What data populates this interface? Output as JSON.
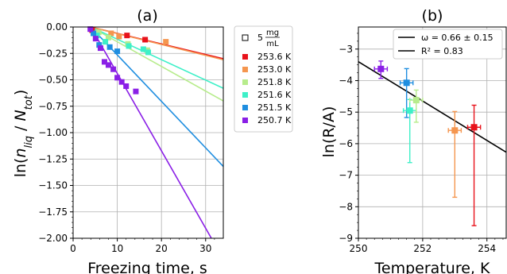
{
  "chart_data": [
    {
      "type": "scatter",
      "title": "(a)",
      "xlabel": "Freezing time, s",
      "ylabel": "ln(n_liq / N_tot)",
      "xlim": [
        0,
        34
      ],
      "ylim": [
        -2.0,
        0.0
      ],
      "x_ticks": [
        0,
        10,
        20,
        30
      ],
      "y_ticks": [
        0.0,
        -0.25,
        -0.5,
        -0.75,
        -1.0,
        -1.25,
        -1.5,
        -1.75,
        -2.0
      ],
      "x_tick_labels": [
        "0",
        "10",
        "20",
        "30"
      ],
      "y_tick_labels": [
        "0.00",
        "−0.25",
        "−0.50",
        "−0.75",
        "−1.00",
        "−1.25",
        "−1.50",
        "−1.75",
        "−2.00"
      ],
      "grid": true,
      "legend": {
        "placement": "outside-right",
        "header": {
          "text": "5",
          "unit_num": "mg",
          "unit_den": "mL"
        }
      },
      "series": [
        {
          "name": "253.6 K",
          "color": "#e8121b",
          "points": [
            [
              4.3,
              -0.03
            ],
            [
              12.2,
              -0.08
            ],
            [
              16.3,
              -0.12
            ]
          ],
          "fit": [
            [
              4.0,
              0.0
            ],
            [
              34,
              -0.3
            ]
          ]
        },
        {
          "name": "253.0 K",
          "color": "#f5964f",
          "points": [
            [
              8.6,
              -0.06
            ],
            [
              10.4,
              -0.09
            ],
            [
              21.0,
              -0.14
            ]
          ],
          "fit": [
            [
              4.0,
              0.0
            ],
            [
              34,
              -0.31
            ]
          ]
        },
        {
          "name": "251.8 K",
          "color": "#b7ec8c",
          "points": [
            [
              5.8,
              -0.05
            ],
            [
              8.0,
              -0.1
            ],
            [
              12.4,
              -0.16
            ],
            [
              16.8,
              -0.22
            ]
          ],
          "fit": [
            [
              4.0,
              0.0
            ],
            [
              34,
              -0.7
            ]
          ]
        },
        {
          "name": "251.6 K",
          "color": "#3ef0c8",
          "points": [
            [
              5.4,
              -0.08
            ],
            [
              7.3,
              -0.14
            ],
            [
              12.6,
              -0.18
            ],
            [
              15.9,
              -0.21
            ],
            [
              17.0,
              -0.24
            ]
          ],
          "fit": [
            [
              4.0,
              0.0
            ],
            [
              34,
              -0.58
            ]
          ]
        },
        {
          "name": "251.5 K",
          "color": "#1f8ee0",
          "points": [
            [
              4.6,
              -0.06
            ],
            [
              5.9,
              -0.17
            ],
            [
              8.3,
              -0.19
            ],
            [
              10.0,
              -0.23
            ]
          ],
          "fit": [
            [
              4.0,
              0.0
            ],
            [
              34,
              -1.32
            ]
          ]
        },
        {
          "name": "250.7 K",
          "color": "#8a1fe6",
          "points": [
            [
              3.9,
              -0.02
            ],
            [
              5.1,
              -0.11
            ],
            [
              6.2,
              -0.2
            ],
            [
              7.1,
              -0.33
            ],
            [
              8.0,
              -0.36
            ],
            [
              9.1,
              -0.4
            ],
            [
              10.0,
              -0.48
            ],
            [
              11.0,
              -0.52
            ],
            [
              12.0,
              -0.56
            ],
            [
              14.2,
              -0.61
            ]
          ],
          "fit": [
            [
              4.0,
              0.0
            ],
            [
              31.3,
              -2.0
            ]
          ]
        }
      ]
    },
    {
      "type": "scatter",
      "title": "(b)",
      "xlabel": "Temperature, K",
      "ylabel": "ln(R/A)",
      "xlim": [
        250,
        254.6
      ],
      "ylim": [
        -9,
        -2.3
      ],
      "x_ticks": [
        250,
        252,
        254
      ],
      "y_ticks": [
        -3,
        -4,
        -5,
        -6,
        -7,
        -8,
        -9
      ],
      "x_tick_labels": [
        "250",
        "252",
        "254"
      ],
      "y_tick_labels": [
        "−3",
        "−4",
        "−5",
        "−6",
        "−7",
        "−8",
        "−9"
      ],
      "grid": true,
      "legend": {
        "placement": "top-right",
        "entries": [
          {
            "label": "ω = 0.66 ± 0.15"
          },
          {
            "label": "R² = 0.83"
          }
        ]
      },
      "fit_line": [
        [
          250,
          -3.4
        ],
        [
          254.6,
          -6.27
        ]
      ],
      "points": [
        {
          "x": 250.7,
          "y": -3.63,
          "xerr": 0.2,
          "yerr_lo": 0.3,
          "yerr_hi": 0.25,
          "color": "#8a1fe6"
        },
        {
          "x": 251.5,
          "y": -4.07,
          "xerr": 0.2,
          "yerr_lo": 1.1,
          "yerr_hi": 0.45,
          "color": "#1f8ee0"
        },
        {
          "x": 251.6,
          "y": -4.95,
          "xerr": 0.2,
          "yerr_lo": 1.65,
          "yerr_hi": 0.35,
          "color": "#3ef0c8"
        },
        {
          "x": 251.8,
          "y": -4.62,
          "xerr": 0.2,
          "yerr_lo": 0.7,
          "yerr_hi": 0.32,
          "color": "#b7ec8c"
        },
        {
          "x": 253.0,
          "y": -5.58,
          "xerr": 0.2,
          "yerr_lo": 2.12,
          "yerr_hi": 0.6,
          "color": "#f5964f"
        },
        {
          "x": 253.6,
          "y": -5.48,
          "xerr": 0.2,
          "yerr_lo": 3.12,
          "yerr_hi": 0.7,
          "color": "#e8121b"
        }
      ]
    }
  ]
}
